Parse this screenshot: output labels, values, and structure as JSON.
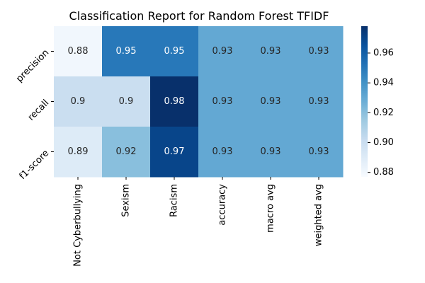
{
  "chart_data": {
    "type": "heatmap",
    "title": "Classification Report for Random Forest TFIDF",
    "x_labels": [
      "Not Cyberbullying",
      "Sexism",
      "Racism",
      "accuracy",
      "macro avg",
      "weighted avg"
    ],
    "y_labels": [
      "precision",
      "recall",
      "f1-score"
    ],
    "values": [
      [
        0.88,
        0.95,
        0.95,
        0.93,
        0.93,
        0.93
      ],
      [
        0.9,
        0.9,
        0.98,
        0.93,
        0.93,
        0.93
      ],
      [
        0.89,
        0.92,
        0.97,
        0.93,
        0.93,
        0.93
      ]
    ],
    "cell_labels": [
      [
        "0.88",
        "0.95",
        "0.95",
        "0.93",
        "0.93",
        "0.93"
      ],
      [
        "0.9",
        "0.9",
        "0.98",
        "0.93",
        "0.93",
        "0.93"
      ],
      [
        "0.89",
        "0.92",
        "0.97",
        "0.93",
        "0.93",
        "0.93"
      ]
    ],
    "vmin": 0.877,
    "vmax": 0.978,
    "colormap": "Blues",
    "colorbar_ticks": [
      0.88,
      0.9,
      0.92,
      0.94,
      0.96
    ],
    "colorbar_tick_labels": [
      "0.88",
      "0.90",
      "0.92",
      "0.94",
      "0.96"
    ],
    "xlabel": "",
    "ylabel": ""
  }
}
